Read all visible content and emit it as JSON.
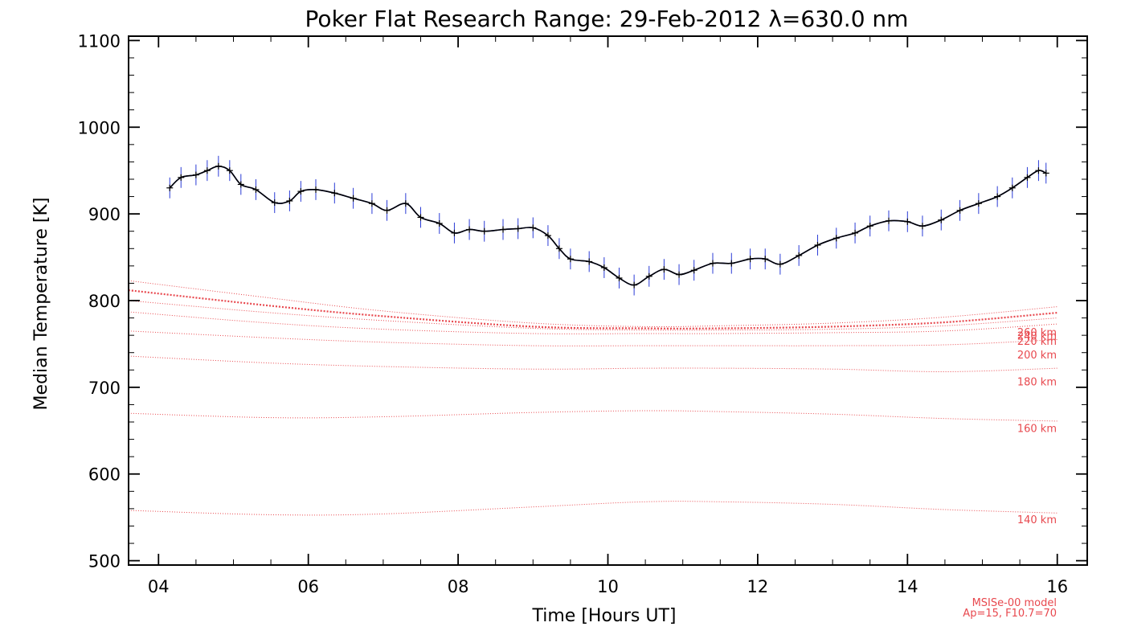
{
  "chart_data": {
    "type": "line",
    "title": "Poker Flat Research Range: 29-Feb-2012 λ=630.0 nm",
    "xlabel": "Time [Hours UT]",
    "ylabel": "Median Temperature [K]",
    "xlim": [
      3.6,
      16.4
    ],
    "ylim": [
      495,
      1105
    ],
    "x_ticks": [
      4,
      6,
      8,
      10,
      12,
      14,
      16
    ],
    "x_tick_labels": [
      "04",
      "06",
      "08",
      "10",
      "12",
      "14",
      "16"
    ],
    "y_ticks": [
      500,
      600,
      700,
      800,
      900,
      1000,
      1100
    ],
    "y_tick_labels": [
      "500",
      "600",
      "700",
      "800",
      "900",
      "1000",
      "1100"
    ],
    "grid": false,
    "colors": {
      "measurement_points": "#2a3bd6",
      "median_line": "#000000",
      "model_lines": "#e8484e"
    },
    "measurement_series": {
      "x": [
        4.15,
        4.3,
        4.5,
        4.65,
        4.8,
        4.95,
        5.1,
        5.3,
        5.55,
        5.75,
        5.9,
        6.1,
        6.35,
        6.6,
        6.85,
        7.05,
        7.3,
        7.5,
        7.75,
        7.95,
        8.15,
        8.35,
        8.6,
        8.8,
        9.0,
        9.2,
        9.35,
        9.5,
        9.75,
        9.95,
        10.15,
        10.35,
        10.55,
        10.75,
        10.95,
        11.15,
        11.4,
        11.65,
        11.9,
        12.1,
        12.3,
        12.55,
        12.8,
        13.05,
        13.3,
        13.5,
        13.75,
        14.0,
        14.2,
        14.45,
        14.7,
        14.95,
        15.2,
        15.4,
        15.6,
        15.75,
        15.85
      ],
      "y": [
        930,
        942,
        945,
        950,
        955,
        950,
        934,
        928,
        913,
        915,
        926,
        928,
        924,
        918,
        912,
        904,
        912,
        896,
        889,
        878,
        882,
        880,
        882,
        883,
        884,
        875,
        860,
        848,
        845,
        838,
        826,
        818,
        828,
        836,
        830,
        835,
        843,
        843,
        848,
        848,
        842,
        852,
        864,
        872,
        878,
        886,
        892,
        891,
        886,
        893,
        904,
        912,
        920,
        930,
        942,
        950,
        947
      ],
      "error": 12
    },
    "model_series": [
      {
        "name": "140 km",
        "x": [
          3.6,
          5.5,
          7.0,
          9.0,
          10.5,
          11.5,
          13.0,
          14.5,
          16.0
        ],
        "y": [
          558,
          553,
          554,
          562,
          568,
          568,
          565,
          559,
          555
        ]
      },
      {
        "name": "160 km",
        "x": [
          3.6,
          5.5,
          7.0,
          9.0,
          10.5,
          11.5,
          13.0,
          14.5,
          16.0
        ],
        "y": [
          670,
          665,
          666,
          671,
          673,
          672,
          669,
          664,
          661
        ]
      },
      {
        "name": "180 km",
        "x": [
          3.6,
          5.5,
          7.0,
          9.0,
          10.5,
          11.5,
          13.0,
          14.5,
          16.0
        ],
        "y": [
          736,
          728,
          724,
          721,
          722,
          722,
          721,
          718,
          722
        ]
      },
      {
        "name": "200 km",
        "x": [
          3.6,
          5.5,
          7.0,
          9.0,
          10.5,
          11.5,
          13.0,
          14.5,
          16.0
        ],
        "y": [
          765,
          757,
          752,
          748,
          748,
          748,
          748,
          749,
          755
        ]
      },
      {
        "name": "220 km",
        "x": [
          3.6,
          5.5,
          7.0,
          9.0,
          10.5,
          11.5,
          13.0,
          14.5,
          16.0
        ],
        "y": [
          787,
          774,
          767,
          762,
          762,
          762,
          763,
          765,
          773
        ]
      },
      {
        "name": "240 km",
        "x": [
          3.6,
          5.5,
          7.0,
          9.0,
          10.5,
          11.5,
          13.0,
          14.5,
          16.0
        ],
        "y": [
          800,
          786,
          777,
          768,
          766,
          766,
          767,
          771,
          780
        ]
      },
      {
        "name": "260 km",
        "x": [
          3.6,
          5.5,
          7.0,
          9.0,
          10.5,
          11.5,
          13.0,
          14.5,
          16.0
        ],
        "y": [
          812,
          794,
          782,
          770,
          768,
          768,
          770,
          775,
          786
        ]
      },
      {
        "name": "",
        "x": [
          3.6,
          5.5,
          7.0,
          9.0,
          10.5,
          11.5,
          13.0,
          14.5,
          16.0
        ],
        "y": [
          823,
          803,
          788,
          774,
          770,
          771,
          774,
          781,
          793
        ]
      }
    ],
    "model_note": [
      "MSISe-00 model",
      "Ap=15, F10.7=70"
    ]
  }
}
